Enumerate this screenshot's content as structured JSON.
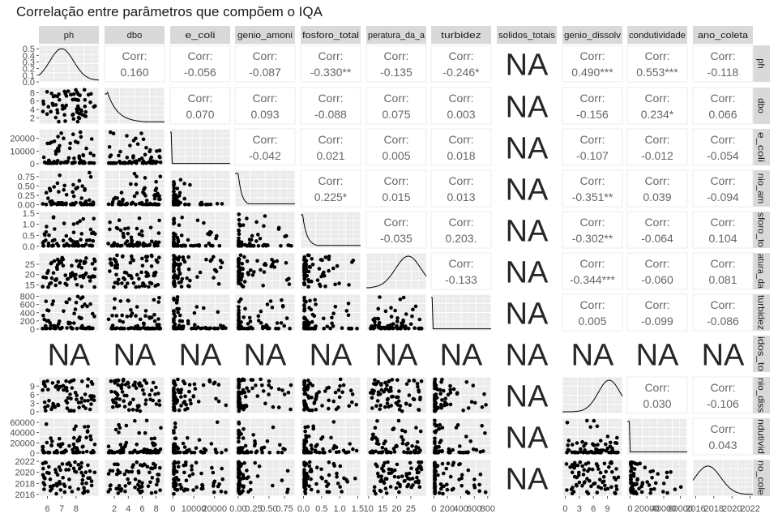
{
  "chart_data": {
    "type": "scatter",
    "title": "Correlação entre parâmetros que compõem o IQA",
    "variables": [
      "ph",
      "dbo",
      "e_coli",
      "nitrogenio_amoniacal",
      "fosforo_total",
      "temperatura_da_agua",
      "turbidez",
      "solidos_totais",
      "oxigenio_dissolvido",
      "condutividade",
      "ano_coleta"
    ],
    "column_strip_labels": [
      "ph",
      "dbo",
      "e_coli",
      "genio_amoni",
      "fosforo_total",
      "peratura_da_a",
      "turbidez",
      "solidos_totais",
      "genio_dissolv",
      "condutividade",
      "ano_coleta"
    ],
    "row_strip_labels": [
      "ph",
      "dbo",
      "e_coli",
      "nio_am",
      "sforo_to",
      "atura_da",
      "turbidez",
      "idos_to",
      "nio_diss",
      "ndutivid",
      "no_cole"
    ],
    "corr_label": "Corr:",
    "na_label": "NA",
    "correlations": [
      [
        "",
        "0.160",
        "-0.056",
        "-0.087",
        "-0.330**",
        "-0.135",
        "-0.246*",
        "NA",
        "0.490***",
        "0.553***",
        "-0.118"
      ],
      [
        "",
        "",
        "0.070",
        "0.093",
        "-0.088",
        "0.075",
        "0.003",
        "NA",
        "-0.156",
        "0.234*",
        "0.066"
      ],
      [
        "",
        "",
        "",
        "-0.042",
        "0.021",
        "0.005",
        "0.018",
        "NA",
        "-0.107",
        "-0.012",
        "-0.054"
      ],
      [
        "",
        "",
        "",
        "",
        "0.225*",
        "0.015",
        "0.013",
        "NA",
        "-0.351**",
        "0.039",
        "-0.094"
      ],
      [
        "",
        "",
        "",
        "",
        "",
        "-0.035",
        "0.203.",
        "NA",
        "-0.302**",
        "-0.064",
        "0.104"
      ],
      [
        "",
        "",
        "",
        "",
        "",
        "",
        "-0.133",
        "NA",
        "-0.344***",
        "-0.060",
        "0.081"
      ],
      [
        "",
        "",
        "",
        "",
        "",
        "",
        "",
        "NA",
        "0.005",
        "-0.099",
        "-0.086"
      ],
      [
        "",
        "",
        "",
        "",
        "",
        "",
        "",
        "",
        "NA",
        "NA",
        "NA"
      ],
      [
        "",
        "",
        "",
        "",
        "",
        "",
        "",
        "",
        "",
        "0.030",
        "-0.106"
      ],
      [
        "",
        "",
        "",
        "",
        "",
        "",
        "",
        "",
        "",
        "",
        "0.043"
      ],
      [
        "",
        "",
        "",
        "",
        "",
        "",
        "",
        "",
        "",
        "",
        ""
      ]
    ],
    "x_axis_ticks": [
      {
        "values": [
          6,
          7,
          8
        ],
        "labels": [
          "6",
          "7",
          "8"
        ],
        "range": [
          5.4,
          9.6
        ]
      },
      {
        "values": [
          2,
          4,
          6,
          8
        ],
        "labels": [
          "2",
          "4",
          "6",
          "8"
        ],
        "range": [
          0.6,
          9.2
        ]
      },
      {
        "values": [
          0,
          10000,
          20000
        ],
        "labels": [
          "0",
          "10000",
          "20000"
        ],
        "range": [
          -1300,
          27500
        ]
      },
      {
        "values": [
          0,
          0.25,
          0.5,
          0.75
        ],
        "labels": [
          "0.00",
          "0.25",
          "0.50",
          "0.75"
        ],
        "range": [
          -0.05,
          0.92
        ]
      },
      {
        "values": [
          0,
          0.5,
          1,
          1.5
        ],
        "labels": [
          "0.0",
          "0.5",
          "1.0",
          "1.5"
        ],
        "range": [
          -0.08,
          1.58
        ]
      },
      {
        "values": [
          10,
          15,
          20,
          25
        ],
        "labels": [
          "10",
          "15",
          "20",
          "25"
        ],
        "range": [
          9.2,
          30.5
        ]
      },
      {
        "values": [
          0,
          200,
          400,
          600,
          800
        ],
        "labels": [
          "0",
          "200",
          "400",
          "600",
          "800"
        ],
        "range": [
          -40,
          850
        ]
      },
      {
        "values": [],
        "labels": [],
        "range": [
          0,
          1
        ]
      },
      {
        "values": [
          0,
          3,
          6,
          9
        ],
        "labels": [
          "0",
          "3",
          "6",
          "9"
        ],
        "range": [
          -0.6,
          12.2
        ]
      },
      {
        "values": [
          0,
          20000,
          40000,
          60000
        ],
        "labels": [
          "0",
          "20000",
          "40000",
          "60000"
        ],
        "range": [
          -3300,
          68000
        ]
      },
      {
        "values": [
          2016,
          2018,
          2020,
          2022
        ],
        "labels": [
          "2016",
          "2018",
          "2020",
          "2022"
        ],
        "range": [
          2015.7,
          2022.3
        ]
      }
    ],
    "y_axis_ticks": [
      {
        "values": [
          0,
          0.1,
          0.2,
          0.3,
          0.4,
          0.5
        ],
        "labels": [
          "0.0",
          "0.1",
          "0.2",
          "0.3",
          "0.4",
          "0.5"
        ],
        "range": [
          0,
          0.55
        ]
      },
      {
        "values": [
          2,
          4,
          6,
          8
        ],
        "labels": [
          "2",
          "4",
          "6",
          "8"
        ],
        "range": [
          0.6,
          9.2
        ]
      },
      {
        "values": [
          0,
          10000,
          20000
        ],
        "labels": [
          "0",
          "10000",
          "20000"
        ],
        "range": [
          -1300,
          27500
        ]
      },
      {
        "values": [
          0,
          0.25,
          0.5,
          0.75
        ],
        "labels": [
          "0.00",
          "0.25",
          "0.50",
          "0.75"
        ],
        "range": [
          -0.05,
          0.92
        ]
      },
      {
        "values": [
          0,
          0.5,
          1,
          1.5
        ],
        "labels": [
          "0.0",
          "0.5",
          "1.0",
          "1.5"
        ],
        "range": [
          -0.08,
          1.58
        ]
      },
      {
        "values": [
          15,
          20,
          25
        ],
        "labels": [
          "15",
          "20",
          "25"
        ],
        "range": [
          12.8,
          30.5
        ]
      },
      {
        "values": [
          0,
          200,
          400,
          600,
          800
        ],
        "labels": [
          "0",
          "200",
          "400",
          "600",
          "800"
        ],
        "range": [
          -40,
          850
        ]
      },
      {
        "values": [],
        "labels": [],
        "range": [
          0,
          1
        ]
      },
      {
        "values": [
          0,
          3,
          6,
          9
        ],
        "labels": [
          "0",
          "3",
          "6",
          "9"
        ],
        "range": [
          -0.6,
          12.2
        ]
      },
      {
        "values": [
          0,
          20000,
          40000,
          60000
        ],
        "labels": [
          "0",
          "20000",
          "40000",
          "60000"
        ],
        "range": [
          -3300,
          68000
        ]
      },
      {
        "values": [
          2016,
          2018,
          2020,
          2022
        ],
        "labels": [
          "2016",
          "2018",
          "2020",
          "2022"
        ],
        "range": [
          2015.7,
          2022.3
        ]
      }
    ],
    "x_axis_tick_labels_printed": [
      "6",
      "7",
      "8",
      "2",
      "4",
      "6",
      "8",
      "0",
      "10000",
      "20000",
      "0.00",
      "0.25",
      "0.50",
      "0.75",
      "0.0",
      "0.5",
      "1.0",
      "1.5",
      "10",
      "15",
      "20",
      "25",
      "0",
      "200",
      "400",
      "600",
      "800",
      "0",
      "3",
      "6",
      "9",
      "0",
      "20000",
      "40000",
      "60000",
      "2016",
      "2018",
      "2020",
      "2022"
    ],
    "legend": "none",
    "grid": true
  }
}
